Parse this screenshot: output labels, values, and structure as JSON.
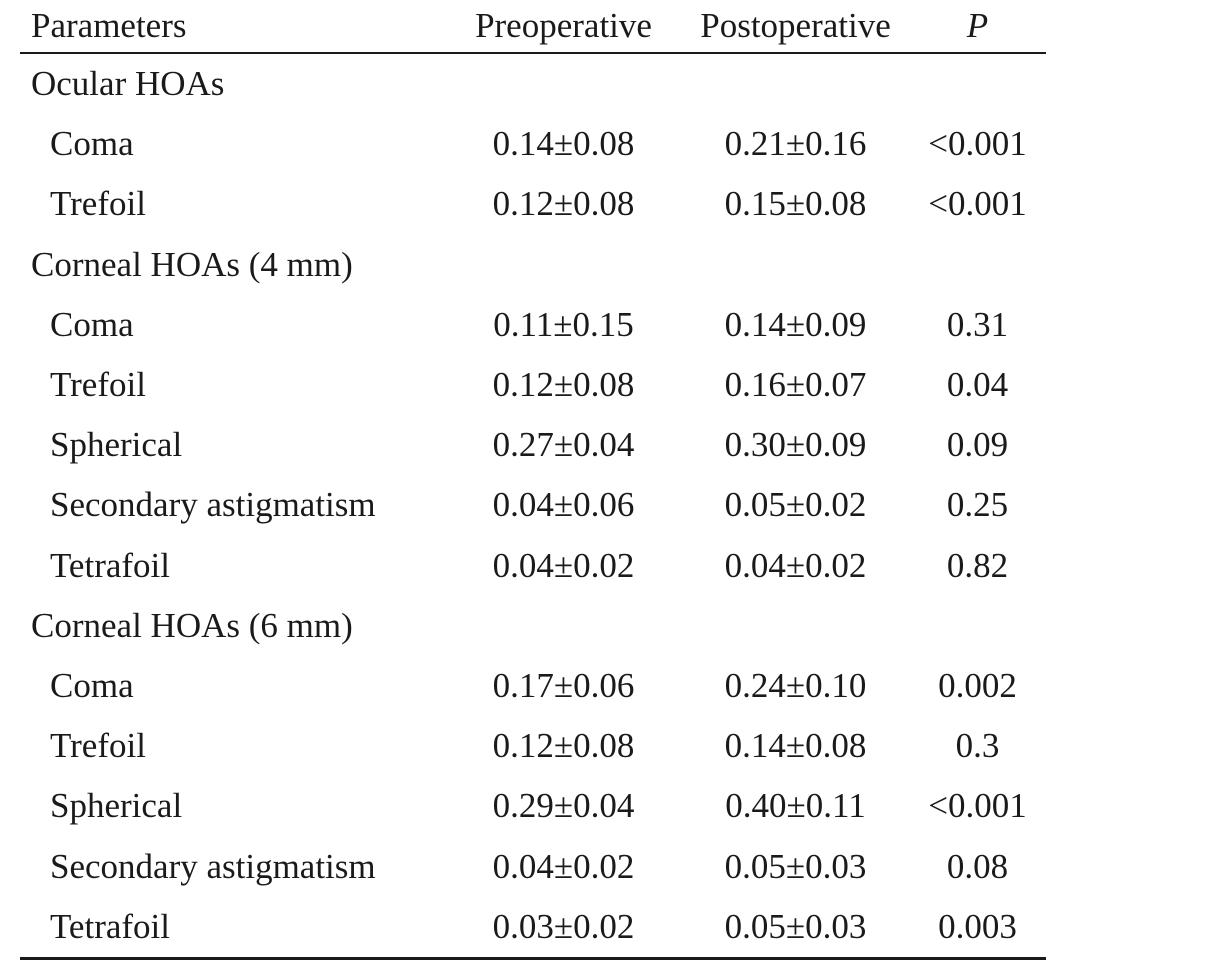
{
  "table": {
    "headers": {
      "parameters": "Parameters",
      "preoperative": "Preoperative",
      "postoperative": "Postoperative",
      "p": "P"
    },
    "groups": [
      {
        "label": "Ocular HOAs",
        "rows": [
          {
            "parameter": "Coma",
            "preoperative": "0.14±0.08",
            "postoperative": "0.21±0.16",
            "p": "<0.001"
          },
          {
            "parameter": "Trefoil",
            "preoperative": "0.12±0.08",
            "postoperative": "0.15±0.08",
            "p": "<0.001"
          }
        ]
      },
      {
        "label": "Corneal HOAs (4 mm)",
        "rows": [
          {
            "parameter": "Coma",
            "preoperative": "0.11±0.15",
            "postoperative": "0.14±0.09",
            "p": "0.31"
          },
          {
            "parameter": "Trefoil",
            "preoperative": "0.12±0.08",
            "postoperative": "0.16±0.07",
            "p": "0.04"
          },
          {
            "parameter": "Spherical",
            "preoperative": "0.27±0.04",
            "postoperative": "0.30±0.09",
            "p": "0.09"
          },
          {
            "parameter": "Secondary astigmatism",
            "preoperative": "0.04±0.06",
            "postoperative": "0.05±0.02",
            "p": "0.25"
          },
          {
            "parameter": "Tetrafoil",
            "preoperative": "0.04±0.02",
            "postoperative": "0.04±0.02",
            "p": "0.82"
          }
        ]
      },
      {
        "label": "Corneal HOAs (6 mm)",
        "rows": [
          {
            "parameter": "Coma",
            "preoperative": "0.17±0.06",
            "postoperative": "0.24±0.10",
            "p": "0.002"
          },
          {
            "parameter": "Trefoil",
            "preoperative": "0.12±0.08",
            "postoperative": "0.14±0.08",
            "p": "0.3"
          },
          {
            "parameter": "Spherical",
            "preoperative": "0.29±0.04",
            "postoperative": "0.40±0.11",
            "p": "<0.001"
          },
          {
            "parameter": "Secondary astigmatism",
            "preoperative": "0.04±0.02",
            "postoperative": "0.05±0.03",
            "p": "0.08"
          },
          {
            "parameter": "Tetrafoil",
            "preoperative": "0.03±0.02",
            "postoperative": "0.05±0.03",
            "p": "0.003"
          }
        ]
      }
    ]
  }
}
